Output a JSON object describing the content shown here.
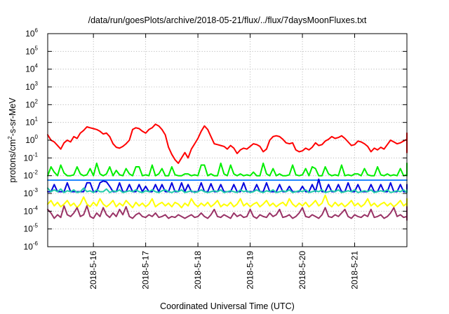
{
  "chart_data": {
    "type": "line",
    "title": "/data/run/goesPlots/archive/2018-05-21/flux/../flux/7daysMoonFluxes.txt",
    "xlabel": "Coordinated Universal Time (UTC)",
    "ylabel": {
      "base": "protons/cm",
      "sup": "2",
      "rest": "-s-sr-MeV"
    },
    "yscale": "log",
    "ylim_exp": [
      -6,
      6
    ],
    "yticks": [
      {
        "mantissa": "10",
        "exp": "-6",
        "value": -6
      },
      {
        "mantissa": "10",
        "exp": "-5",
        "value": -5
      },
      {
        "mantissa": "10",
        "exp": "-4",
        "value": -4
      },
      {
        "mantissa": "10",
        "exp": "-3",
        "value": -3
      },
      {
        "mantissa": "10",
        "exp": "-2",
        "value": -2
      },
      {
        "mantissa": "10",
        "exp": "-1",
        "value": -1
      },
      {
        "mantissa": "10",
        "exp": "0",
        "value": 0
      },
      {
        "mantissa": "10",
        "exp": "1",
        "value": 1
      },
      {
        "mantissa": "10",
        "exp": "2",
        "value": 2
      },
      {
        "mantissa": "10",
        "exp": "3",
        "value": 3
      },
      {
        "mantissa": "10",
        "exp": "4",
        "value": 4
      },
      {
        "mantissa": "10",
        "exp": "5",
        "value": 5
      },
      {
        "mantissa": "10",
        "exp": "6",
        "value": 6
      }
    ],
    "xlim": [
      "2018-05-15 03:00",
      "2018-05-22 00:00"
    ],
    "xticks": [
      "2018-5-16",
      "2018-5-17",
      "2018-5-18",
      "2018-5-19",
      "2018-5-20",
      "2018-5-21"
    ],
    "x_start": "2018-05-15 03:00",
    "x_step_hours": 1.5,
    "grid": true,
    "series": [
      {
        "color": "#ff0000",
        "values": [
          0.3,
          0.0,
          -0.1,
          -0.3,
          -0.5,
          -0.15,
          0.0,
          -0.1,
          0.2,
          0.1,
          0.4,
          0.55,
          0.75,
          0.7,
          0.65,
          0.6,
          0.5,
          0.35,
          0.4,
          0.2,
          -0.2,
          -0.4,
          -0.45,
          -0.35,
          -0.2,
          0.0,
          0.6,
          0.7,
          0.65,
          0.5,
          0.4,
          0.6,
          0.7,
          0.9,
          0.8,
          0.6,
          0.3,
          -0.4,
          -0.8,
          -1.1,
          -1.3,
          -1.0,
          -0.7,
          -1.0,
          -0.5,
          -0.2,
          0.1,
          0.5,
          0.8,
          0.6,
          0.2,
          -0.2,
          -0.25,
          -0.3,
          -0.35,
          -0.5,
          -0.3,
          -0.45,
          -0.75,
          -0.55,
          -0.45,
          -0.5,
          -0.35,
          -0.2,
          -0.25,
          -0.35,
          -0.65,
          -0.5,
          0.0,
          0.2,
          0.25,
          0.2,
          0.05,
          -0.15,
          -0.2,
          -0.15,
          -0.55,
          -0.65,
          -0.6,
          -0.45,
          -0.55,
          -0.4,
          -0.15,
          -0.3,
          -0.25,
          -0.05,
          0.05,
          0.2,
          0.1,
          0.15,
          0.25,
          0.1,
          -0.1,
          -0.3,
          -0.25,
          -0.05,
          -0.1,
          -0.2,
          -0.35,
          -0.65,
          -0.45,
          -0.55,
          -0.4,
          -0.5,
          -0.25,
          0.0,
          -0.1,
          -0.2,
          -0.15,
          -0.05,
          0.05,
          -0.05,
          -0.15,
          -0.5,
          -0.55,
          -0.7,
          -0.55,
          -0.5,
          -0.6,
          -0.45,
          -0.3,
          -0.15,
          0.0,
          0.2,
          0.3,
          0.35,
          0.4,
          0.35,
          0.3,
          0.4
        ]
      },
      {
        "color": "#00ee00",
        "values": [
          -2.0,
          -1.5,
          -1.8,
          -2.0,
          -1.4,
          -1.85,
          -2.0,
          -2.0,
          -1.95,
          -1.5,
          -1.9,
          -2.0,
          -1.95,
          -1.6,
          -2.0,
          -1.3,
          -1.9,
          -2.0,
          -1.9,
          -1.5,
          -2.0,
          -1.7,
          -1.95,
          -2.0,
          -1.6,
          -1.9,
          -2.0,
          -1.5,
          -1.5,
          -2.0,
          -1.95,
          -2.0,
          -1.4,
          -2.0,
          -1.9,
          -1.6,
          -2.0,
          -2.0,
          -1.5,
          -1.95,
          -2.0,
          -2.0,
          -1.9,
          -1.9,
          -2.0,
          -1.95,
          -2.0,
          -1.4,
          -1.4,
          -2.0,
          -1.9,
          -2.0,
          -2.0,
          -1.3,
          -1.9,
          -2.0,
          -1.4,
          -1.9,
          -2.0,
          -1.9,
          -2.0,
          -1.95,
          -2.0,
          -1.8,
          -2.0,
          -2.0,
          -1.3,
          -1.9,
          -2.0,
          -1.6,
          -2.0,
          -1.9,
          -2.0,
          -2.0,
          -1.95,
          -1.4,
          -1.95,
          -2.0,
          -1.95,
          -1.6,
          -2.0,
          -1.5,
          -1.6,
          -2.0,
          -2.0,
          -1.5,
          -1.9,
          -2.0,
          -1.95,
          -2.0,
          -1.4,
          -2.0,
          -1.95,
          -2.0,
          -1.9,
          -1.9,
          -2.0,
          -1.6,
          -1.95,
          -2.0,
          -2.0,
          -1.5,
          -1.95,
          -2.0,
          -1.9,
          -2.0,
          -1.95,
          -2.0,
          -1.6,
          -2.0,
          -1.95,
          -2.0,
          -1.7,
          -2.0,
          -2.0,
          -1.6,
          -1.9,
          -1.95,
          -1.3,
          -1.9,
          -2.0,
          -1.95,
          -2.0,
          -1.6,
          -2.0,
          -1.95,
          -2.0,
          -1.6
        ]
      },
      {
        "color": "#2288ff",
        "values": [
          -2.25,
          -2.25,
          -2.25,
          -2.25,
          -2.25,
          -2.25,
          -2.25,
          -2.25,
          -2.25,
          -2.25,
          -2.25,
          -2.25,
          -2.25,
          -2.25,
          -2.25,
          -2.25,
          -2.25,
          -2.25,
          -2.25,
          -2.25,
          -2.25,
          -2.25,
          -2.25,
          -2.25,
          -2.25,
          -2.25,
          -2.25,
          -2.25,
          -2.25,
          -2.25,
          -2.25,
          -2.25,
          -2.25,
          -2.25,
          -2.25,
          -2.25,
          -2.25,
          -2.25,
          -2.25,
          -2.25,
          -2.25,
          -2.25,
          -2.25,
          -2.25,
          -2.25,
          -2.25,
          -2.25,
          -2.25,
          -2.25,
          -2.25,
          -2.25,
          -2.25,
          -2.25,
          -2.25,
          -2.25,
          -2.25,
          -2.25,
          -2.25,
          -2.25,
          -2.25,
          -2.25,
          -2.25,
          -2.25,
          -2.25,
          -2.25,
          -2.25,
          -2.25,
          -2.25,
          -2.25,
          -2.25,
          -2.25,
          -2.25,
          -2.25,
          -2.25,
          -2.25,
          -2.25,
          -2.25,
          -2.25,
          -2.25,
          -2.25,
          -2.25,
          -2.25,
          -2.25,
          -2.25,
          -2.25,
          -2.25,
          -2.25,
          -2.25,
          -2.25,
          -2.25,
          -2.25,
          -2.25,
          -2.25,
          -2.25,
          -2.25,
          -2.25,
          -2.25,
          -2.25,
          -2.25,
          -2.25,
          -2.25,
          -2.25,
          -2.25,
          -2.25,
          -2.25,
          -2.25,
          -2.25,
          -2.25,
          -2.25,
          -2.25,
          -2.25,
          -2.25,
          -2.25,
          -2.25,
          -2.25,
          -2.25,
          -2.25,
          -2.25,
          -2.25,
          -2.25,
          -2.25,
          -2.25,
          -2.25,
          -2.25,
          -2.25,
          -2.25,
          -2.25,
          -2.25
        ]
      },
      {
        "color": "#0000dd",
        "values": [
          -2.9,
          -2.9,
          -2.5,
          -2.9,
          -2.9,
          -2.9,
          -2.4,
          -2.9,
          -2.9,
          -2.9,
          -2.9,
          -2.9,
          -2.4,
          -2.4,
          -2.9,
          -2.9,
          -2.4,
          -2.3,
          -2.35,
          -2.6,
          -2.9,
          -2.9,
          -2.4,
          -2.9,
          -2.9,
          -2.5,
          -2.9,
          -2.9,
          -2.5,
          -2.9,
          -2.6,
          -2.9,
          -2.9,
          -2.5,
          -2.9,
          -2.5,
          -2.9,
          -2.9,
          -2.4,
          -2.9,
          -2.9,
          -2.4,
          -2.9,
          -2.5,
          -2.9,
          -2.9,
          -2.9,
          -2.4,
          -2.9,
          -2.9,
          -2.45,
          -2.9,
          -2.9,
          -2.5,
          -2.9,
          -2.9,
          -2.9,
          -2.5,
          -2.9,
          -2.9,
          -2.4,
          -2.9,
          -2.9,
          -2.9,
          -2.5,
          -2.9,
          -2.9,
          -2.4,
          -2.9,
          -2.9,
          -2.9,
          -2.5,
          -2.9,
          -2.9,
          -2.6,
          -2.9,
          -2.9,
          -2.9,
          -2.6,
          -2.9,
          -2.9,
          -2.5,
          -2.9,
          -2.2,
          -2.9,
          -2.9,
          -2.5,
          -2.9,
          -2.9,
          -2.5,
          -2.9,
          -2.9,
          -2.4,
          -2.9,
          -2.9,
          -2.5,
          -2.9,
          -2.9,
          -2.9,
          -2.5,
          -2.9,
          -2.9,
          -2.5,
          -2.9,
          -2.9,
          -2.4,
          -2.9,
          -2.9,
          -2.5,
          -2.9,
          -2.9,
          -2.5,
          -2.9,
          -2.9,
          -2.5,
          -2.9,
          -2.9,
          -2.5,
          -2.9,
          -2.9,
          -2.5,
          -2.9,
          -2.9,
          -2.5,
          -2.9,
          -2.9,
          -2.5,
          -2.9
        ]
      },
      {
        "color": "#22ccaa",
        "values": [
          -2.7,
          -2.9,
          -2.8,
          -2.9,
          -2.75,
          -2.95,
          -2.85,
          -2.9,
          -2.8,
          -2.95,
          -2.9,
          -2.7,
          -2.9,
          -2.85,
          -2.95,
          -2.8,
          -2.9,
          -2.9,
          -2.75,
          -2.95,
          -2.85,
          -2.9,
          -2.8,
          -2.95,
          -2.9,
          -2.85,
          -2.9,
          -2.8,
          -2.9,
          -2.95,
          -2.85,
          -2.9,
          -2.8,
          -2.9,
          -2.95,
          -2.85,
          -2.8,
          -2.9,
          -2.95,
          -2.85,
          -2.9,
          -2.8,
          -2.95,
          -2.9,
          -2.85,
          -2.95,
          -2.9,
          -2.8,
          -2.9,
          -2.95,
          -2.9,
          -2.85,
          -2.9,
          -2.8,
          -2.95,
          -2.9,
          -2.85,
          -2.9,
          -2.95,
          -2.8,
          -2.9,
          -2.85,
          -2.95,
          -2.9,
          -2.8,
          -2.9,
          -2.95,
          -2.85,
          -2.9,
          -2.8,
          -2.95,
          -2.9,
          -2.85,
          -2.9,
          -2.8,
          -2.95,
          -2.9,
          -2.85,
          -2.9,
          -2.8,
          -2.95,
          -2.9,
          -2.85,
          -2.9,
          -2.8,
          -2.95,
          -2.9,
          -2.85,
          -2.9,
          -2.8,
          -2.95,
          -2.9,
          -2.85,
          -2.9,
          -2.8,
          -2.95,
          -2.9,
          -2.85,
          -2.9,
          -2.8,
          -2.95,
          -2.9,
          -2.85,
          -2.9,
          -2.8,
          -2.95,
          -2.9,
          -2.85,
          -2.9,
          -2.8,
          -2.95,
          -2.9,
          -2.85,
          -2.9,
          -2.8,
          -2.95,
          -2.9,
          -2.85,
          -2.9,
          -2.8,
          -2.95,
          -2.9,
          -2.85,
          -2.9,
          -2.8,
          -2.95,
          -2.9,
          -2.85
        ]
      },
      {
        "color": "#ffff00",
        "values": [
          -3.6,
          -3.4,
          -3.7,
          -3.5,
          -3.75,
          -3.6,
          -3.4,
          -3.7,
          -3.55,
          -3.8,
          -3.6,
          -3.2,
          -3.6,
          -3.75,
          -3.5,
          -3.7,
          -3.3,
          -3.6,
          -3.75,
          -3.6,
          -3.4,
          -3.75,
          -3.55,
          -3.7,
          -3.4,
          -3.6,
          -3.8,
          -3.5,
          -3.7,
          -3.55,
          -3.75,
          -3.6,
          -3.3,
          -3.75,
          -3.6,
          -3.5,
          -3.7,
          -3.55,
          -3.75,
          -3.5,
          -3.6,
          -3.8,
          -3.55,
          -3.7,
          -3.3,
          -3.6,
          -3.75,
          -3.55,
          -3.7,
          -3.5,
          -3.75,
          -3.6,
          -3.4,
          -3.75,
          -3.6,
          -3.7,
          -3.5,
          -3.75,
          -3.6,
          -3.3,
          -3.7,
          -3.55,
          -3.75,
          -3.6,
          -3.5,
          -3.75,
          -3.6,
          -3.4,
          -3.7,
          -3.55,
          -3.75,
          -3.6,
          -3.5,
          -3.7,
          -3.3,
          -3.6,
          -3.75,
          -3.55,
          -3.7,
          -3.5,
          -3.75,
          -3.6,
          -3.4,
          -3.7,
          -3.55,
          -3.1,
          -3.6,
          -3.75,
          -3.5,
          -3.7,
          -3.55,
          -3.75,
          -3.6,
          -3.4,
          -3.7,
          -3.55,
          -3.75,
          -3.6,
          -3.3,
          -3.7,
          -3.55,
          -3.75,
          -3.6,
          -3.5,
          -3.7,
          -3.55,
          -3.75,
          -3.6,
          -3.4,
          -3.7,
          -3.55,
          -3.75,
          -3.6,
          -3.3,
          -3.7,
          -3.55,
          -3.75,
          -3.6,
          -3.5,
          -3.7,
          -3.55,
          -3.75,
          -3.6,
          -3.4,
          -3.7,
          -3.55,
          -3.75,
          -3.6
        ]
      },
      {
        "color": "#993366",
        "values": [
          -3.9,
          -4.1,
          -4.4,
          -4.2,
          -4.35,
          -3.7,
          -4.2,
          -4.3,
          -4.1,
          -3.8,
          -4.3,
          -4.2,
          -3.7,
          -4.3,
          -4.4,
          -4.1,
          -4.3,
          -3.8,
          -4.2,
          -4.35,
          -4.1,
          -4.3,
          -3.9,
          -4.2,
          -3.75,
          -4.3,
          -4.4,
          -4.2,
          -4.1,
          -4.3,
          -4.35,
          -4.2,
          -4.3,
          -4.1,
          -4.35,
          -4.3,
          -4.2,
          -4.4,
          -4.3,
          -4.35,
          -4.2,
          -4.3,
          -4.4,
          -4.3,
          -4.2,
          -4.35,
          -4.3,
          -4.1,
          -4.3,
          -4.4,
          -4.2,
          -3.9,
          -4.3,
          -4.35,
          -4.2,
          -4.3,
          -4.4,
          -4.1,
          -4.3,
          -4.2,
          -4.35,
          -4.3,
          -3.9,
          -4.3,
          -4.4,
          -4.2,
          -4.3,
          -4.35,
          -4.1,
          -4.3,
          -4.2,
          -3.9,
          -4.35,
          -4.3,
          -4.2,
          -4.4,
          -4.3,
          -4.1,
          -3.8,
          -4.3,
          -4.35,
          -4.2,
          -4.3,
          -4.4,
          -4.2,
          -3.8,
          -4.3,
          -4.35,
          -4.2,
          -4.3,
          -4.1,
          -3.9,
          -4.3,
          -4.4,
          -4.2,
          -4.3,
          -4.35,
          -4.2,
          -4.3,
          -3.9,
          -4.35,
          -4.3,
          -4.2,
          -4.4,
          -4.3,
          -4.1,
          -3.8,
          -4.3,
          -4.2,
          -4.35,
          -4.3,
          -4.4,
          -4.2,
          -3.9,
          -4.3,
          -4.35,
          -4.2,
          -4.3,
          -4.4,
          -4.3,
          -4.2,
          -4.3,
          -4.5,
          -4.35,
          -4.1,
          -3.75,
          -4.3,
          -4.2
        ]
      }
    ]
  }
}
